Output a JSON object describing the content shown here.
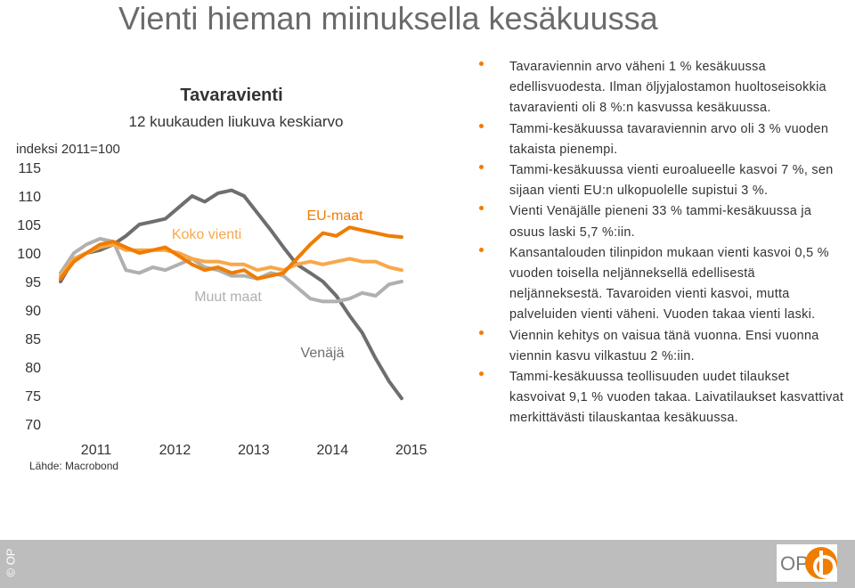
{
  "slide": {
    "title": "Vienti hieman miinuksella kesäkuussa",
    "source": "Lähde: Macrobond",
    "copyright": "© OP",
    "logo_text": "OP"
  },
  "bullets": [
    "Tavaraviennin arvo väheni 1 % kesäkuussa edellisvuodesta. Ilman öljyjalostamon huoltoseisokkia tavaravienti oli 8 %:n kasvussa kesäkuussa.",
    "Tammi-kesäkuussa tavaraviennin arvo oli 3 % vuoden takaista pienempi.",
    "Tammi-kesäkuussa vienti euroalueelle kasvoi 7 %, sen sijaan vienti EU:n ulkopuolelle supistui 3 %.",
    "Vienti Venäjälle pieneni 33 % tammi-kesäkuussa ja osuus laski 5,7 %:iin.",
    "Kansantalouden tilinpidon mukaan vienti kasvoi 0,5 % vuoden toisella neljänneksellä edellisestä neljänneksestä. Tavaroiden vienti kasvoi, mutta palveluiden vienti väheni. Vuoden takaa vienti laski.",
    "Viennin kehitys on vaisua tänä vuonna. Ensi vuonna viennin kasvu vilkastuu 2 %:iin.",
    "Tammi-kesäkuussa teollisuuden uudet tilaukset kasvoivat 9,1 % vuoden takaa. Laivatilaukset kasvattivat merkittävästi tilauskantaa kesäkuussa."
  ],
  "chart_data": {
    "type": "line",
    "title": "Tavaravienti",
    "subtitle": "12 kuukauden liukuva keskiarvo",
    "ylabel": "indeksi 2011=100",
    "ylim": [
      70,
      115
    ],
    "yticks": [
      70,
      75,
      80,
      85,
      90,
      95,
      100,
      105,
      110,
      115
    ],
    "xlim": [
      2011.0,
      2015.5
    ],
    "xticks": [
      "2011",
      "2012",
      "2013",
      "2014",
      "2015"
    ],
    "grid": false,
    "colors": {
      "EU-maat": "#f07c00",
      "Koko vienti": "#f7a84a",
      "Muut maat": "#b0b0b0",
      "Venäjä": "#6e6e6e"
    },
    "series": [
      {
        "name": "EU-maat",
        "x": [
          2011.0,
          2011.17,
          2011.33,
          2011.5,
          2011.67,
          2011.83,
          2012.0,
          2012.17,
          2012.33,
          2012.5,
          2012.67,
          2012.83,
          2013.0,
          2013.17,
          2013.33,
          2013.5,
          2013.67,
          2013.83,
          2014.0,
          2014.17,
          2014.33,
          2014.5,
          2014.67,
          2014.83,
          2015.0,
          2015.17,
          2015.33
        ],
        "y": [
          95.5,
          98.5,
          100.0,
          101.5,
          102.0,
          101.0,
          100.0,
          100.5,
          101.0,
          99.5,
          98.0,
          97.0,
          97.5,
          96.5,
          97.0,
          95.5,
          96.0,
          96.5,
          99.0,
          101.5,
          103.5,
          103.0,
          104.5,
          104.0,
          103.5,
          103.0,
          102.8
        ]
      },
      {
        "name": "Koko vienti",
        "x": [
          2011.0,
          2011.17,
          2011.33,
          2011.5,
          2011.67,
          2011.83,
          2012.0,
          2012.17,
          2012.33,
          2012.5,
          2012.67,
          2012.83,
          2013.0,
          2013.17,
          2013.33,
          2013.5,
          2013.67,
          2013.83,
          2014.0,
          2014.17,
          2014.33,
          2014.5,
          2014.67,
          2014.83,
          2015.0,
          2015.17,
          2015.33
        ],
        "y": [
          96.0,
          99.0,
          100.0,
          101.0,
          101.5,
          100.5,
          100.5,
          100.5,
          100.5,
          100.0,
          99.0,
          98.5,
          98.5,
          98.0,
          98.0,
          97.0,
          97.5,
          97.0,
          98.0,
          98.5,
          98.0,
          98.5,
          99.0,
          98.5,
          98.5,
          97.5,
          97.0
        ]
      },
      {
        "name": "Muut maat",
        "x": [
          2011.0,
          2011.17,
          2011.33,
          2011.5,
          2011.67,
          2011.83,
          2012.0,
          2012.17,
          2012.33,
          2012.5,
          2012.67,
          2012.83,
          2013.0,
          2013.17,
          2013.33,
          2013.5,
          2013.67,
          2013.83,
          2014.0,
          2014.17,
          2014.33,
          2014.5,
          2014.67,
          2014.83,
          2015.0,
          2015.17,
          2015.33
        ],
        "y": [
          96.5,
          100.0,
          101.5,
          102.5,
          102.0,
          97.0,
          96.5,
          97.5,
          97.0,
          98.0,
          99.0,
          97.5,
          97.0,
          96.0,
          96.0,
          95.5,
          96.5,
          96.0,
          94.0,
          92.0,
          91.5,
          91.5,
          92.0,
          93.0,
          92.5,
          94.5,
          95.0
        ]
      },
      {
        "name": "Venäjä",
        "x": [
          2011.0,
          2011.17,
          2011.33,
          2011.5,
          2011.67,
          2011.83,
          2012.0,
          2012.17,
          2012.33,
          2012.5,
          2012.67,
          2012.83,
          2013.0,
          2013.17,
          2013.33,
          2013.5,
          2013.67,
          2013.83,
          2014.0,
          2014.17,
          2014.33,
          2014.5,
          2014.67,
          2014.83,
          2015.0,
          2015.17,
          2015.33
        ],
        "y": [
          95.0,
          99.0,
          100.0,
          100.5,
          101.5,
          103.0,
          105.0,
          105.5,
          106.0,
          108.0,
          110.0,
          109.0,
          110.5,
          111.0,
          110.0,
          107.0,
          104.0,
          101.0,
          98.0,
          96.5,
          95.0,
          92.5,
          89.0,
          86.0,
          81.5,
          77.5,
          74.5
        ]
      }
    ],
    "annotations": [
      {
        "text": "Koko vienti",
        "series": "Koko vienti"
      },
      {
        "text": "EU-maat",
        "series": "EU-maat"
      },
      {
        "text": "Muut maat",
        "series": "Muut maat"
      },
      {
        "text": "Venäjä",
        "series": "Venäjä"
      }
    ]
  }
}
